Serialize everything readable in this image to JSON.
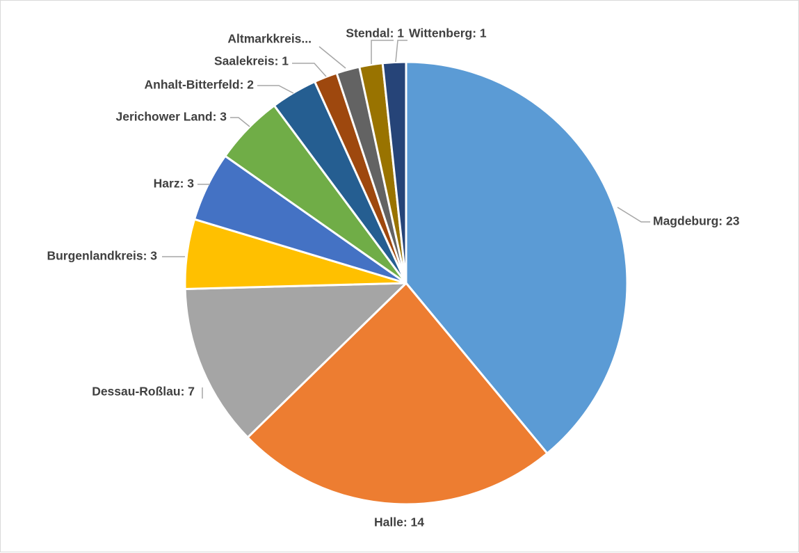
{
  "chart_data": {
    "type": "pie",
    "title": "",
    "start_angle_deg": 0,
    "direction": "clockwise",
    "slices": [
      {
        "label": "Magdeburg: 23",
        "category": "Magdeburg",
        "value": 23,
        "color": "#5B9BD5"
      },
      {
        "label": "Halle: 14",
        "category": "Halle",
        "value": 14,
        "color": "#ED7D31"
      },
      {
        "label": "Dessau-Roßlau: 7",
        "category": "Dessau-Roßlau",
        "value": 7,
        "color": "#A5A5A5"
      },
      {
        "label": "Burgenlandkreis: 3",
        "category": "Burgenlandkreis",
        "value": 3,
        "color": "#FFC000"
      },
      {
        "label": "Harz: 3",
        "category": "Harz",
        "value": 3,
        "color": "#4472C4"
      },
      {
        "label": "Jerichower Land: 3",
        "category": "Jerichower Land",
        "value": 3,
        "color": "#70AD47"
      },
      {
        "label": "Anhalt-Bitterfeld: 2",
        "category": "Anhalt-Bitterfeld",
        "value": 2,
        "color": "#255E91"
      },
      {
        "label": "Saalekreis: 1",
        "category": "Saalekreis",
        "value": 1,
        "color": "#9E480E"
      },
      {
        "label": "Altmarkkreis...",
        "category": "Altmarkkreis...",
        "value": 1,
        "color": "#636363"
      },
      {
        "label": "Stendal: 1",
        "category": "Stendal",
        "value": 1,
        "color": "#997300"
      },
      {
        "label": "Wittenberg: 1",
        "category": "Wittenberg",
        "value": 1,
        "color": "#264478"
      }
    ]
  }
}
